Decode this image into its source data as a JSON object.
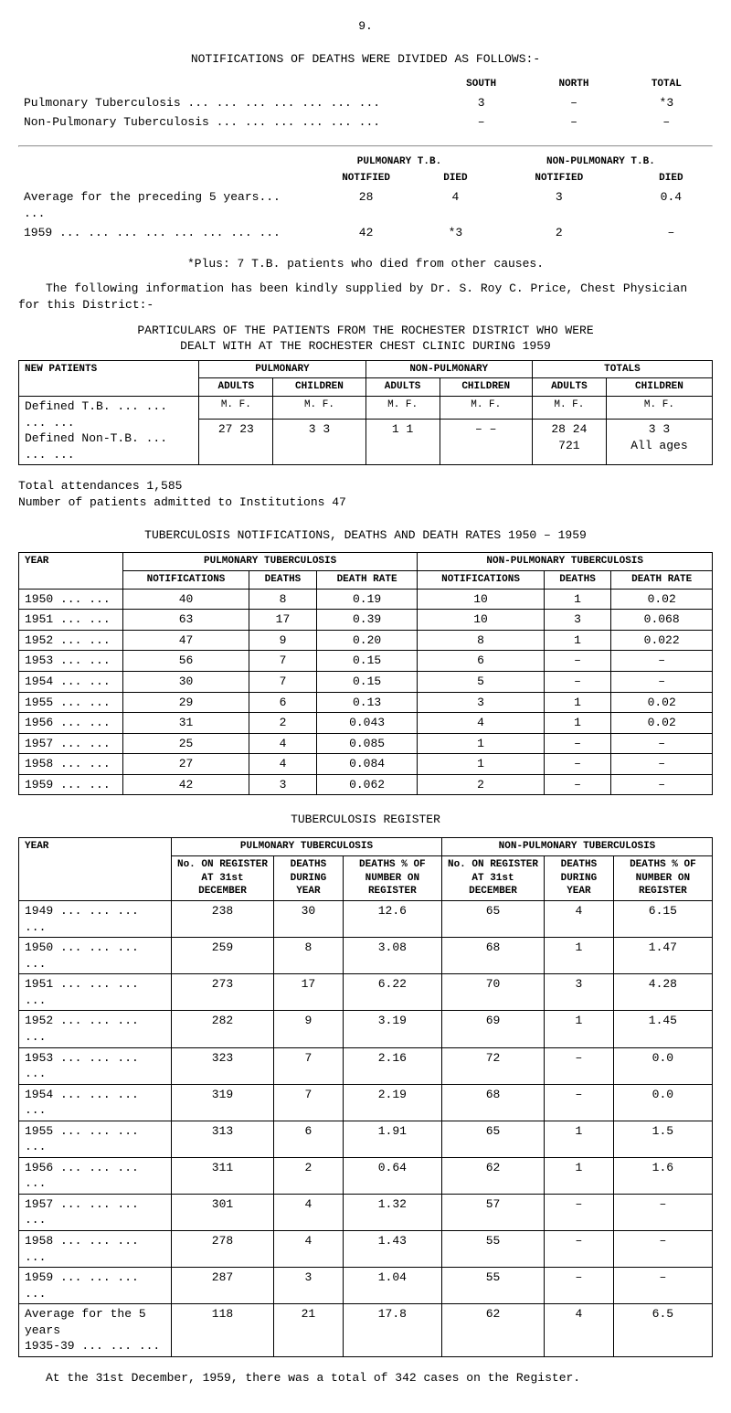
{
  "page_number": "9.",
  "title_follows": "NOTIFICATIONS OF DEATHS WERE DIVIDED AS FOLLOWS:-",
  "follows_header": {
    "south": "SOUTH",
    "north": "NORTH",
    "total": "TOTAL"
  },
  "follows_rows": [
    {
      "label": "Pulmonary Tuberculosis ... ... ... ... ... ... ...",
      "south": "3",
      "north": "–",
      "total": "*3"
    },
    {
      "label": "Non-Pulmonary Tuberculosis ... ... ... ... ... ...",
      "south": "–",
      "north": "–",
      "total": "–"
    }
  ],
  "preceding_header": {
    "pn": "PULMONARY T.B.",
    "npn": "NON-PULMONARY T.B.",
    "notified": "NOTIFIED",
    "died": "DIED",
    "notified2": "NOTIFIED",
    "died2": "DIED"
  },
  "preceding_rows": [
    {
      "label": "Average for the preceding 5 years... ...",
      "a": "28",
      "b": "4",
      "c": "3",
      "d": "0.4"
    },
    {
      "label": "1959   ... ... ... ... ... ... ... ...",
      "a": "42",
      "b": "*3",
      "c": "2",
      "d": "–"
    }
  ],
  "plus_note": "*Plus: 7 T.B. patients who died from other causes.",
  "intro_para": "The following information has been kindly supplied by Dr. S. Roy C. Price, Chest Physician for this District:-",
  "particulars_heading_1": "PARTICULARS OF THE PATIENTS FROM THE ROCHESTER DISTRICT WHO WERE",
  "particulars_heading_2": "DEALT WITH AT THE ROCHESTER CHEST CLINIC DURING 1959",
  "patients_table": {
    "col_new": "NEW PATIENTS",
    "col_groups": [
      "PULMONARY",
      "NON-PULMONARY",
      "TOTALS"
    ],
    "sub_cols": [
      "ADULTS",
      "CHILDREN"
    ],
    "mf_header": "M.  F.",
    "rows": [
      {
        "label": "Defined T.B. ... ... ... ...",
        "pulm_a": "27  23",
        "pulm_c": "3   3",
        "nonp_a": "1   1",
        "nonp_c": "–   –",
        "tot_a": "28  24",
        "tot_c": "3   3"
      },
      {
        "label": "Defined Non-T.B. ... ... ...",
        "pulm_a": "",
        "pulm_c": "",
        "nonp_a": "",
        "nonp_c": "",
        "tot_a": "721",
        "tot_c": "All ages"
      }
    ]
  },
  "total_attend": "Total attendances 1,585",
  "num_admitted": "Number of patients admitted to Institutions 47",
  "tb_rates_title": "TUBERCULOSIS NOTIFICATIONS, DEATHS AND DEATH RATES 1950 – 1959",
  "tb_rates_header": {
    "year": "YEAR",
    "pulm": "PULMONARY TUBERCULOSIS",
    "nonp": "NON-PULMONARY TUBERCULOSIS",
    "notif": "NotificationS",
    "deaths": "DEATHS",
    "rate": "DEATH RATE"
  },
  "tb_rates_cols": [
    "NOTIFICATIONS",
    "DEATHS",
    "DEATH RATE",
    "NOTIFICATIONS",
    "DEATHS",
    "DEATH RATE"
  ],
  "tb_rates_rows": [
    {
      "y": "1950 ... ...",
      "a": "40",
      "b": "8",
      "c": "0.19",
      "d": "10",
      "e": "1",
      "f": "0.02"
    },
    {
      "y": "1951 ... ...",
      "a": "63",
      "b": "17",
      "c": "0.39",
      "d": "10",
      "e": "3",
      "f": "0.068"
    },
    {
      "y": "1952 ... ...",
      "a": "47",
      "b": "9",
      "c": "0.20",
      "d": "8",
      "e": "1",
      "f": "0.022"
    },
    {
      "y": "1953 ... ...",
      "a": "56",
      "b": "7",
      "c": "0.15",
      "d": "6",
      "e": "–",
      "f": "–"
    },
    {
      "y": "1954 ... ...",
      "a": "30",
      "b": "7",
      "c": "0.15",
      "d": "5",
      "e": "–",
      "f": "–"
    },
    {
      "y": "1955 ... ...",
      "a": "29",
      "b": "6",
      "c": "0.13",
      "d": "3",
      "e": "1",
      "f": "0.02"
    },
    {
      "y": "1956 ... ...",
      "a": "31",
      "b": "2",
      "c": "0.043",
      "d": "4",
      "e": "1",
      "f": "0.02"
    },
    {
      "y": "1957 ... ...",
      "a": "25",
      "b": "4",
      "c": "0.085",
      "d": "1",
      "e": "–",
      "f": "–"
    },
    {
      "y": "1958 ... ...",
      "a": "27",
      "b": "4",
      "c": "0.084",
      "d": "1",
      "e": "–",
      "f": "–"
    },
    {
      "y": "1959 ... ...",
      "a": "42",
      "b": "3",
      "c": "0.062",
      "d": "2",
      "e": "–",
      "f": "–"
    }
  ],
  "tb_register_title": "TUBERCULOSIS REGISTER",
  "tb_reg_header": {
    "year": "YEAR",
    "pulm": "PULMONARY TUBERCULOSIS",
    "nonp": "NON-PULMONARY TUBERCULOSIS",
    "noon": "No. ON REGISTER AT 31st DECEMBER",
    "ddy": "DEATHS DURING YEAR",
    "dpc": "DEATHS % OF NUMBER ON REGISTER"
  },
  "tb_reg_rows": [
    {
      "y": "1949 ... ... ... ...",
      "a": "238",
      "b": "30",
      "c": "12.6",
      "d": "65",
      "e": "4",
      "f": "6.15"
    },
    {
      "y": "1950 ... ... ... ...",
      "a": "259",
      "b": "8",
      "c": "3.08",
      "d": "68",
      "e": "1",
      "f": "1.47"
    },
    {
      "y": "1951 ... ... ... ...",
      "a": "273",
      "b": "17",
      "c": "6.22",
      "d": "70",
      "e": "3",
      "f": "4.28"
    },
    {
      "y": "1952 ... ... ... ...",
      "a": "282",
      "b": "9",
      "c": "3.19",
      "d": "69",
      "e": "1",
      "f": "1.45"
    },
    {
      "y": "1953 ... ... ... ...",
      "a": "323",
      "b": "7",
      "c": "2.16",
      "d": "72",
      "e": "–",
      "f": "0.0"
    },
    {
      "y": "1954 ... ... ... ...",
      "a": "319",
      "b": "7",
      "c": "2.19",
      "d": "68",
      "e": "–",
      "f": "0.0"
    },
    {
      "y": "1955 ... ... ... ...",
      "a": "313",
      "b": "6",
      "c": "1.91",
      "d": "65",
      "e": "1",
      "f": "1.5"
    },
    {
      "y": "1956 ... ... ... ...",
      "a": "311",
      "b": "2",
      "c": "0.64",
      "d": "62",
      "e": "1",
      "f": "1.6"
    },
    {
      "y": "1957 ... ... ... ...",
      "a": "301",
      "b": "4",
      "c": "1.32",
      "d": "57",
      "e": "–",
      "f": "–"
    },
    {
      "y": "1958 ... ... ... ...",
      "a": "278",
      "b": "4",
      "c": "1.43",
      "d": "55",
      "e": "–",
      "f": "–"
    },
    {
      "y": "1959 ... ... ... ...",
      "a": "287",
      "b": "3",
      "c": "1.04",
      "d": "55",
      "e": "–",
      "f": "–"
    },
    {
      "y": "Average for the 5 years\n  1935-39 ... ... ...",
      "a": "118",
      "b": "21",
      "c": "17.8",
      "d": "62",
      "e": "4",
      "f": "6.5"
    }
  ],
  "footer_note": "At the 31st December, 1959, there was a total of 342 cases on the Register."
}
